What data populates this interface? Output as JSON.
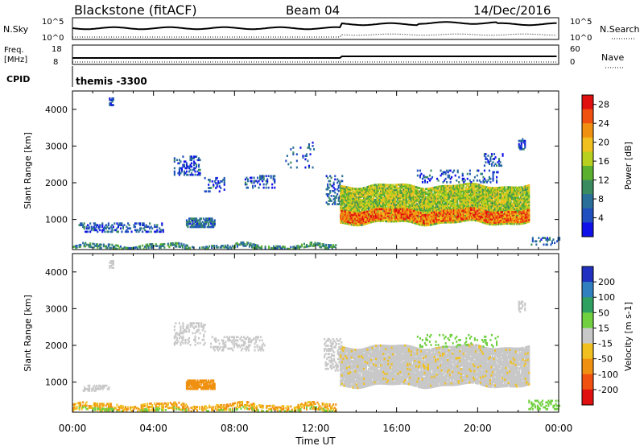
{
  "header": {
    "station": "Blackstone (fitACF)",
    "beam": "Beam 04",
    "date": "14/Dec/2016"
  },
  "top_panels": {
    "nsky_label": "N.Sky",
    "nsky_ticks": [
      "10^5",
      "10^0"
    ],
    "nsearch_label": "N.Search",
    "nsearch_ticks": [
      "10^5",
      "10^0"
    ],
    "freq_label": "Freq.",
    "freq_unit": "[MHz]",
    "freq_ticks": [
      "18",
      "8"
    ],
    "nave_label": "Nave",
    "nave_ticks": [
      "60",
      "0"
    ],
    "cpid_label": "CPID",
    "cpid_text": "themis -3300"
  },
  "x_axis": {
    "label": "Time UT",
    "ticks": [
      "00:00",
      "04:00",
      "08:00",
      "12:00",
      "16:00",
      "20:00",
      "00:00"
    ],
    "range_hours": [
      0,
      24
    ]
  },
  "chart_data": [
    {
      "type": "heatmap",
      "name": "power",
      "ylabel": "Slant Range [km]",
      "y_ticks": [
        "4000",
        "3000",
        "2000",
        "1000"
      ],
      "y_range": [
        180,
        4500
      ],
      "colorbar": {
        "label": "Power [dB]",
        "ticks": [
          "28",
          "24",
          "20",
          "16",
          "12",
          "8",
          "4"
        ],
        "range": [
          0,
          30
        ],
        "colors": [
          "#1010e8",
          "#2050c0",
          "#2a6e9a",
          "#3a8c60",
          "#5cb030",
          "#b8d020",
          "#f0c020",
          "#f09010",
          "#f05010",
          "#e01010"
        ]
      },
      "regions": [
        {
          "t": [
            0.0,
            13.0
          ],
          "r": [
            190,
            320
          ],
          "v": 10,
          "density": 0.55
        },
        {
          "t": [
            0.3,
            4.5
          ],
          "r": [
            650,
            900
          ],
          "v": 5,
          "density": 0.4
        },
        {
          "t": [
            5.6,
            7.0
          ],
          "r": [
            780,
            1020
          ],
          "v": 7,
          "density": 0.75
        },
        {
          "t": [
            5.0,
            6.3
          ],
          "r": [
            2200,
            2700
          ],
          "v": 5,
          "density": 0.35
        },
        {
          "t": [
            6.5,
            7.5
          ],
          "r": [
            1750,
            2150
          ],
          "v": 5,
          "density": 0.3
        },
        {
          "t": [
            8.5,
            10.0
          ],
          "r": [
            1850,
            2200
          ],
          "v": 5,
          "density": 0.3
        },
        {
          "t": [
            10.5,
            12.0
          ],
          "r": [
            2400,
            3100
          ],
          "v": 5,
          "density": 0.08
        },
        {
          "t": [
            12.5,
            13.3
          ],
          "r": [
            1400,
            2200
          ],
          "v": 7,
          "density": 0.3
        },
        {
          "t": [
            13.2,
            22.5
          ],
          "r": [
            900,
            1900
          ],
          "v": 16,
          "density": 0.95
        },
        {
          "t": [
            13.2,
            22.5
          ],
          "r": [
            950,
            1250
          ],
          "v": 24,
          "density": 0.85
        },
        {
          "t": [
            17.0,
            21.0
          ],
          "r": [
            2000,
            2350
          ],
          "v": 5,
          "density": 0.2
        },
        {
          "t": [
            20.3,
            21.2
          ],
          "r": [
            2450,
            2800
          ],
          "v": 5,
          "density": 0.25
        },
        {
          "t": [
            22.0,
            22.3
          ],
          "r": [
            2900,
            3200
          ],
          "v": 5,
          "density": 0.5
        },
        {
          "t": [
            22.5,
            24.0
          ],
          "r": [
            300,
            500
          ],
          "v": 6,
          "density": 0.3
        },
        {
          "t": [
            1.8,
            2.0
          ],
          "r": [
            4100,
            4300
          ],
          "v": 5,
          "density": 0.6
        }
      ]
    },
    {
      "type": "heatmap",
      "name": "velocity",
      "ylabel": "Slant Range [km]",
      "y_ticks": [
        "4000",
        "3000",
        "2000",
        "1000"
      ],
      "y_range": [
        180,
        4500
      ],
      "colorbar": {
        "label": "Velocity [m s-1]",
        "ticks": [
          "200",
          "100",
          "50",
          "15",
          "-15",
          "-50",
          "-100",
          "-200"
        ],
        "colors": [
          "#2030c0",
          "#3080c0",
          "#30a060",
          "#70d040",
          "#c8c8c8",
          "#f0c020",
          "#f09010",
          "#f05010",
          "#e01010"
        ]
      },
      "regions": [
        {
          "t": [
            0.0,
            13.0
          ],
          "r": [
            190,
            380
          ],
          "v": -50,
          "density": 0.5
        },
        {
          "t": [
            0.0,
            13.0
          ],
          "r": [
            190,
            280
          ],
          "v": 40,
          "density": 0.25
        },
        {
          "t": [
            0.5,
            1.8
          ],
          "r": [
            750,
            900
          ],
          "v": 0,
          "density": 0.5
        },
        {
          "t": [
            5.6,
            7.0
          ],
          "r": [
            800,
            1050
          ],
          "v": -60,
          "density": 0.85
        },
        {
          "t": [
            5.0,
            6.5
          ],
          "r": [
            2000,
            2600
          ],
          "v": 0,
          "density": 0.3
        },
        {
          "t": [
            6.8,
            9.5
          ],
          "r": [
            1850,
            2250
          ],
          "v": 0,
          "density": 0.3
        },
        {
          "t": [
            12.4,
            13.3
          ],
          "r": [
            1300,
            2200
          ],
          "v": 0,
          "density": 0.35
        },
        {
          "t": [
            13.2,
            22.5
          ],
          "r": [
            900,
            1950
          ],
          "v": 0,
          "density": 0.95
        },
        {
          "t": [
            13.2,
            22.5
          ],
          "r": [
            900,
            1950
          ],
          "v": -40,
          "density": 0.05
        },
        {
          "t": [
            17.0,
            21.0
          ],
          "r": [
            1950,
            2300
          ],
          "v": 40,
          "density": 0.15
        },
        {
          "t": [
            22.0,
            22.3
          ],
          "r": [
            2900,
            3200
          ],
          "v": 0,
          "density": 0.4
        },
        {
          "t": [
            22.5,
            24.0
          ],
          "r": [
            250,
            500
          ],
          "v": 40,
          "density": 0.3
        },
        {
          "t": [
            1.8,
            2.0
          ],
          "r": [
            4100,
            4300
          ],
          "v": 0,
          "density": 0.6
        }
      ]
    }
  ],
  "series_top": {
    "nsky_step_hour": 13.2,
    "freq_step_hour": 13.2
  }
}
